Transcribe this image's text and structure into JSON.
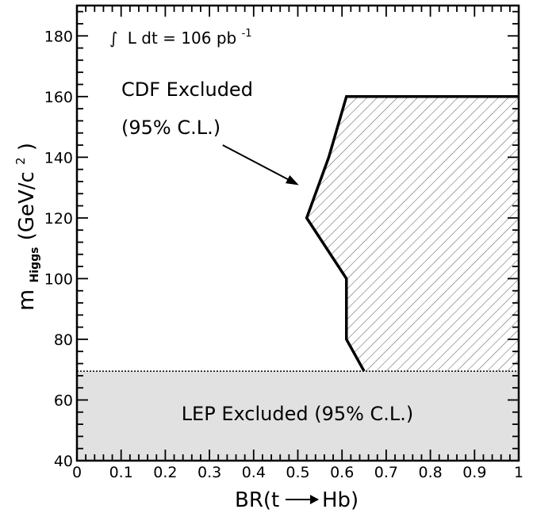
{
  "chart_data": {
    "type": "area",
    "xlabel_prefix": "BR(t",
    "xlabel_suffix": "Hb)",
    "ylabel_main": "m",
    "ylabel_sub": "Higgs",
    "ylabel_unit_open": "(GeV/c",
    "ylabel_unit_exp": "2",
    "ylabel_unit_close": ")",
    "xlim": [
      0,
      1
    ],
    "ylim": [
      40,
      190
    ],
    "x_ticks": [
      {
        "value": 0,
        "label": "0"
      },
      {
        "value": 0.1,
        "label": "0.1"
      },
      {
        "value": 0.2,
        "label": "0.2"
      },
      {
        "value": 0.3,
        "label": "0.3"
      },
      {
        "value": 0.4,
        "label": "0.4"
      },
      {
        "value": 0.5,
        "label": "0.5"
      },
      {
        "value": 0.6,
        "label": "0.6"
      },
      {
        "value": 0.7,
        "label": "0.7"
      },
      {
        "value": 0.8,
        "label": "0.8"
      },
      {
        "value": 0.9,
        "label": "0.9"
      },
      {
        "value": 1,
        "label": "1"
      }
    ],
    "y_ticks": [
      {
        "value": 40,
        "label": "40"
      },
      {
        "value": 60,
        "label": "60"
      },
      {
        "value": 80,
        "label": "80"
      },
      {
        "value": 100,
        "label": "100"
      },
      {
        "value": 120,
        "label": "120"
      },
      {
        "value": 140,
        "label": "140"
      },
      {
        "value": 160,
        "label": "160"
      },
      {
        "value": 180,
        "label": "180"
      }
    ],
    "lumi_integral": "∫",
    "lumi_text": "L dt = 106 pb",
    "lumi_exp": "-1",
    "series": [
      {
        "name": "CDF Excluded (95% C.L.)",
        "fill": "hatched",
        "boundary": [
          {
            "x": 0.65,
            "y": 69.5
          },
          {
            "x": 0.61,
            "y": 80
          },
          {
            "x": 0.61,
            "y": 100
          },
          {
            "x": 0.52,
            "y": 120
          },
          {
            "x": 0.57,
            "y": 140
          },
          {
            "x": 0.61,
            "y": 160
          },
          {
            "x": 1.0,
            "y": 160
          }
        ]
      },
      {
        "name": "LEP Excluded (95% C.L.)",
        "fill": "#e1e1e1",
        "y_range": [
          40,
          69.5
        ]
      }
    ],
    "annotations": {
      "cdf_line1": "CDF Excluded",
      "cdf_line2": "(95% C.L.)",
      "cdf_arrow_from": {
        "x": 0.33,
        "y": 144
      },
      "cdf_arrow_to": {
        "x": 0.5,
        "y": 131
      },
      "lep_label": "LEP Excluded (95% C.L.)"
    },
    "colors": {
      "lep_band": "#e1e1e1",
      "hatch": "#555555",
      "line": "#000000"
    }
  }
}
